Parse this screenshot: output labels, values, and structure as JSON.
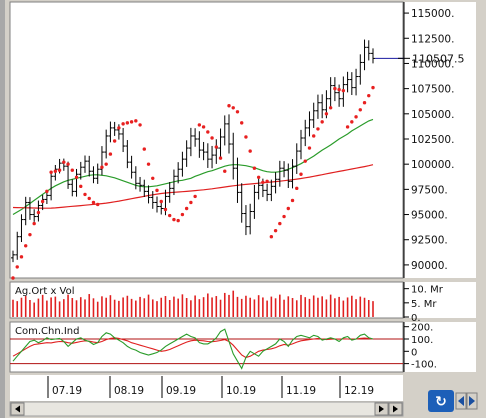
{
  "chart_data": [
    {
      "type": "candlestick",
      "x_ticks": [
        "07.19",
        "08.19",
        "09.19",
        "10.19",
        "11.19",
        "12.19"
      ],
      "y_ticks": [
        115000,
        112500,
        110000,
        107500,
        105000,
        102500,
        100000,
        97500,
        95000,
        92500,
        90000
      ],
      "y_tick_labels": [
        "115000.",
        "112500.",
        "110000.",
        "107500.",
        "105000.",
        "102500.",
        "100000.",
        "97500.",
        "95000.",
        "92500.",
        "90000."
      ],
      "ylim": [
        88700,
        116100
      ],
      "current_value": 110507.5,
      "current_label": "110507.5",
      "price_close": [
        91000,
        92800,
        94500,
        96200,
        95000,
        94800,
        95900,
        96500,
        96900,
        98800,
        99500,
        100100,
        99800,
        98000,
        97300,
        99000,
        99700,
        100300,
        99300,
        98600,
        99500,
        101200,
        102800,
        103600,
        103400,
        103000,
        101800,
        100200,
        99200,
        98100,
        97900,
        97300,
        96700,
        96200,
        95800,
        95600,
        96800,
        97600,
        98800,
        99500,
        100500,
        101600,
        102800,
        102500,
        101400,
        101200,
        100500,
        100900,
        101600,
        102700,
        104000,
        102000,
        99600,
        97200,
        95100,
        93800,
        95300,
        97200,
        97900,
        97400,
        97000,
        97800,
        98500,
        99600,
        99400,
        98300,
        99800,
        101300,
        102600,
        103600,
        104400,
        105300,
        106100,
        105400,
        106500,
        107800,
        107100,
        106500,
        107900,
        108400,
        107600,
        108700,
        110100,
        111600,
        111000,
        110500
      ],
      "price_range": [
        1200,
        1400,
        1500,
        1600,
        1500,
        1500,
        1400,
        1300,
        1300,
        1400,
        1200,
        1200,
        1300,
        1300,
        1400,
        1500,
        1500,
        1600,
        1500,
        1400,
        1600,
        1700,
        1800,
        1800,
        1700,
        1600,
        1700,
        1700,
        1800,
        1700,
        1800,
        1600,
        1700,
        1800,
        1700,
        1700,
        1900,
        1800,
        1900,
        2000,
        2100,
        2200,
        2300,
        2200,
        2200,
        2300,
        2500,
        2600,
        2500,
        2400,
        2400,
        2700,
        3200,
        3000,
        2600,
        2400,
        2200,
        2100,
        2000,
        1900,
        1900,
        1900,
        2000,
        2100,
        2000,
        1900,
        2000,
        2200,
        2300,
        2300,
        2400,
        2300,
        2300,
        2400,
        2400,
        2400,
        2400,
        2300,
        2300,
        2200,
        2100,
        2200,
        2300,
        2200,
        2000,
        1400
      ],
      "parabolic_sar": [
        88700,
        89800,
        90800,
        91900,
        93000,
        94100,
        95200,
        96300,
        97300,
        99200,
        99300,
        99400,
        100200,
        100000,
        99400,
        98700,
        97800,
        97000,
        96600,
        96200,
        96000,
        99700,
        100000,
        101000,
        102300,
        103600,
        104000,
        104100,
        104200,
        104300,
        103900,
        101500,
        100000,
        98600,
        97400,
        96300,
        95500,
        94900,
        94500,
        94400,
        95000,
        95600,
        96200,
        96800,
        103900,
        103700,
        103200,
        102600,
        101700,
        100600,
        99300,
        105800,
        105600,
        105200,
        104100,
        102700,
        101300,
        99600,
        98700,
        98200,
        98300,
        92800,
        93400,
        94100,
        94800,
        95600,
        96400,
        97600,
        99000,
        100300,
        101600,
        102800,
        103500,
        104200,
        105000,
        105600,
        107500,
        107400,
        107300,
        103700,
        104200,
        104700,
        105400,
        106100,
        106800,
        107600
      ],
      "series": [
        {
          "name": "",
          "color": "#2a9c2a",
          "values": [
            95000,
            95250,
            95500,
            95800,
            96100,
            96400,
            96700,
            97000,
            97300,
            97600,
            97850,
            98050,
            98250,
            98400,
            98500,
            98600,
            98700,
            98800,
            98900,
            98950,
            98950,
            98900,
            98850,
            98750,
            98650,
            98500,
            98350,
            98200,
            98050,
            97900,
            97800,
            97750,
            97750,
            97800,
            97850,
            97950,
            98050,
            98150,
            98250,
            98350,
            98400,
            98500,
            98600,
            98800,
            98950,
            99100,
            99250,
            99350,
            99500,
            99650,
            99800,
            99900,
            99950,
            99950,
            99900,
            99850,
            99750,
            99650,
            99500,
            99350,
            99250,
            99200,
            99200,
            99250,
            99350,
            99500,
            99650,
            99850,
            100050,
            100300,
            100550,
            100800,
            101100,
            101400,
            101650,
            101900,
            102200,
            102500,
            102750,
            103000,
            103300,
            103550,
            103800,
            104050,
            104300,
            104450
          ]
        },
        {
          "name": "",
          "color": "#e02020",
          "values": [
            95700,
            95690,
            95680,
            95670,
            95660,
            95650,
            95640,
            95630,
            95630,
            95640,
            95660,
            95700,
            95740,
            95780,
            95820,
            95850,
            95890,
            95930,
            95970,
            96010,
            96050,
            96090,
            96140,
            96200,
            96260,
            96330,
            96410,
            96490,
            96570,
            96650,
            96730,
            96810,
            96890,
            96960,
            97030,
            97090,
            97140,
            97180,
            97210,
            97240,
            97270,
            97300,
            97340,
            97380,
            97420,
            97460,
            97510,
            97560,
            97610,
            97670,
            97730,
            97790,
            97850,
            97900,
            97950,
            97990,
            98030,
            98070,
            98110,
            98150,
            98190,
            98230,
            98270,
            98310,
            98360,
            98410,
            98460,
            98520,
            98580,
            98650,
            98720,
            98800,
            98880,
            98960,
            99040,
            99120,
            99200,
            99280,
            99360,
            99440,
            99520,
            99600,
            99680,
            99760,
            99850,
            99950
          ]
        }
      ]
    },
    {
      "type": "bar",
      "title": "Ag.Ort x Vol",
      "y_tick_labels": [
        "10. Mr",
        "5. Mr",
        "0."
      ],
      "ylim": [
        0,
        12
      ],
      "values": [
        6.1,
        5.6,
        6.8,
        7.4,
        6.0,
        5.1,
        6.5,
        7.8,
        5.8,
        6.9,
        7.2,
        5.5,
        6.3,
        7.9,
        6.7,
        5.9,
        7.0,
        6.2,
        8.1,
        6.6,
        5.4,
        7.3,
        6.8,
        7.7,
        6.1,
        5.7,
        6.9,
        7.5,
        6.4,
        5.8,
        7.1,
        6.6,
        7.9,
        6.2,
        5.6,
        6.8,
        7.4,
        6.0,
        7.2,
        6.5,
        8.0,
        6.7,
        5.9,
        7.6,
        6.3,
        7.0,
        8.3,
        6.9,
        7.4,
        6.1,
        8.5,
        7.8,
        9.3,
        7.1,
        6.4,
        7.5,
        6.8,
        6.2,
        7.7,
        6.9,
        5.8,
        7.2,
        6.6,
        7.9,
        6.1,
        7.3,
        6.7,
        5.9,
        7.8,
        7.0,
        6.4,
        7.6,
        6.8,
        7.3,
        6.2,
        7.9,
        6.6,
        7.1,
        5.8,
        6.9,
        7.5,
        6.3,
        7.2,
        6.8,
        6.0,
        5.6
      ]
    },
    {
      "type": "line",
      "title": "Com.Chn.Ind",
      "y_ticks": [
        200,
        100,
        0,
        -100
      ],
      "y_tick_labels": [
        "200.",
        "100.",
        "0",
        "-100."
      ],
      "ylim": [
        -160,
        230
      ],
      "reference_lines": [
        100,
        -100
      ],
      "series": [
        {
          "name": "",
          "color": "#e02020",
          "values": [
            -40,
            -20,
            0,
            20,
            40,
            55,
            60,
            65,
            70,
            68,
            75,
            80,
            78,
            70,
            65,
            72,
            80,
            85,
            82,
            75,
            70,
            80,
            95,
            105,
            110,
            105,
            95,
            85,
            70,
            60,
            50,
            40,
            30,
            20,
            10,
            0,
            5,
            15,
            30,
            45,
            60,
            75,
            85,
            90,
            88,
            85,
            80,
            78,
            82,
            88,
            95,
            80,
            50,
            10,
            -30,
            -50,
            -40,
            -20,
            0,
            10,
            15,
            20,
            30,
            45,
            55,
            50,
            60,
            75,
            85,
            90,
            95,
            100,
            105,
            100,
            95,
            98,
            100,
            98,
            102,
            100,
            98,
            100,
            105,
            108,
            105,
            100
          ]
        },
        {
          "name": "",
          "color": "#2a9c2a",
          "values": [
            -80,
            -40,
            0,
            40,
            80,
            90,
            70,
            85,
            110,
            95,
            100,
            105,
            80,
            40,
            70,
            100,
            110,
            90,
            80,
            55,
            70,
            120,
            150,
            140,
            110,
            90,
            70,
            40,
            20,
            10,
            -10,
            -20,
            -30,
            -20,
            -10,
            10,
            40,
            60,
            80,
            100,
            120,
            140,
            120,
            110,
            70,
            60,
            60,
            80,
            110,
            160,
            180,
            80,
            -20,
            -80,
            -140,
            -50,
            0,
            -20,
            -40,
            0,
            20,
            40,
            60,
            100,
            80,
            40,
            90,
            120,
            130,
            120,
            110,
            130,
            120,
            90,
            100,
            110,
            100,
            80,
            110,
            120,
            90,
            100,
            130,
            140,
            110,
            100
          ]
        }
      ]
    }
  ],
  "ui": {
    "x_labels": [
      "07.19",
      "08.19",
      "09.19",
      "10.19",
      "11.19",
      "12.19"
    ]
  }
}
